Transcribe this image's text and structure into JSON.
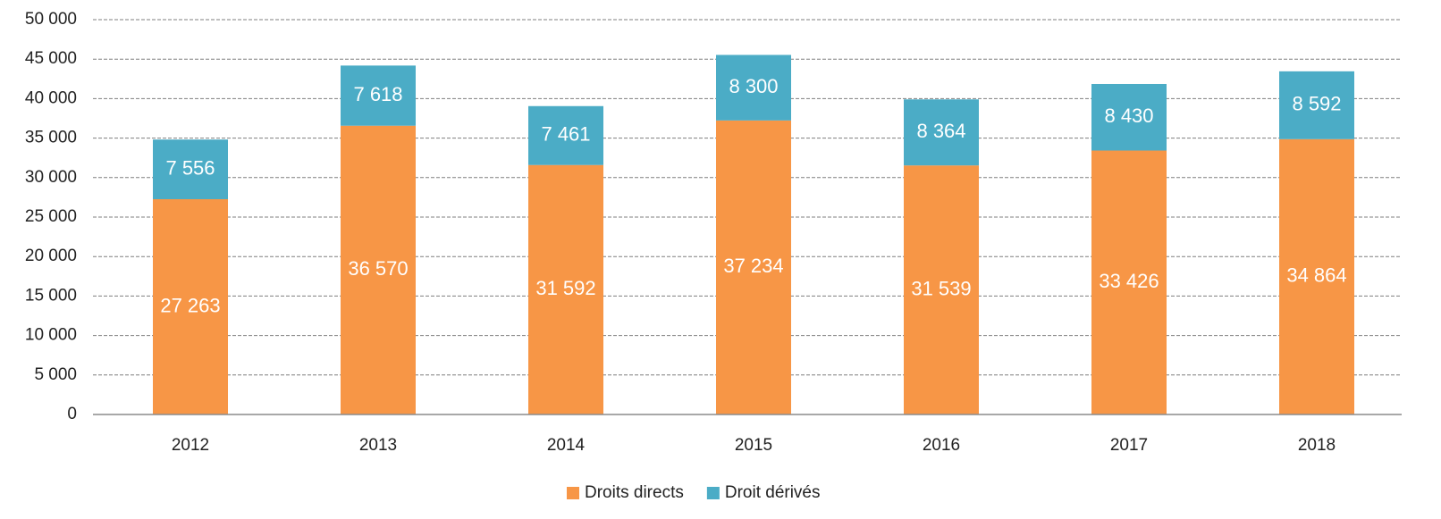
{
  "chart_data": {
    "type": "stacked_bar",
    "categories": [
      "2012",
      "2013",
      "2014",
      "2015",
      "2016",
      "2017",
      "2018"
    ],
    "series": [
      {
        "name": "Droits directs",
        "color": "#f79646",
        "values": [
          27263,
          36570,
          31592,
          37234,
          31539,
          33426,
          34864
        ],
        "value_labels": [
          "27 263",
          "36 570",
          "31 592",
          "37 234",
          "31 539",
          "33 426",
          "34 864"
        ]
      },
      {
        "name": "Droit dérivés",
        "color": "#4bacc6",
        "values": [
          7556,
          7618,
          7461,
          8300,
          8364,
          8430,
          8592
        ],
        "value_labels": [
          "7 556",
          "7 618",
          "7 461",
          "8 300",
          "8 364",
          "8 430",
          "8 592"
        ]
      }
    ],
    "ylim": [
      0,
      50000
    ],
    "yticks": [
      0,
      {
        "value": 5000,
        "label": "5 000"
      },
      {
        "value": 10000,
        "label": "10 000"
      },
      {
        "value": 15000,
        "label": "15 000"
      },
      {
        "value": 20000,
        "label": "20 000"
      },
      {
        "value": 25000,
        "label": "25 000"
      },
      {
        "value": 30000,
        "label": "30 000"
      },
      {
        "value": 35000,
        "label": "35 000"
      },
      {
        "value": 40000,
        "label": "40 000"
      },
      {
        "value": 45000,
        "label": "45 000"
      },
      {
        "value": 50000,
        "label": "50 000"
      }
    ],
    "grid": true,
    "legend": "bottom"
  }
}
